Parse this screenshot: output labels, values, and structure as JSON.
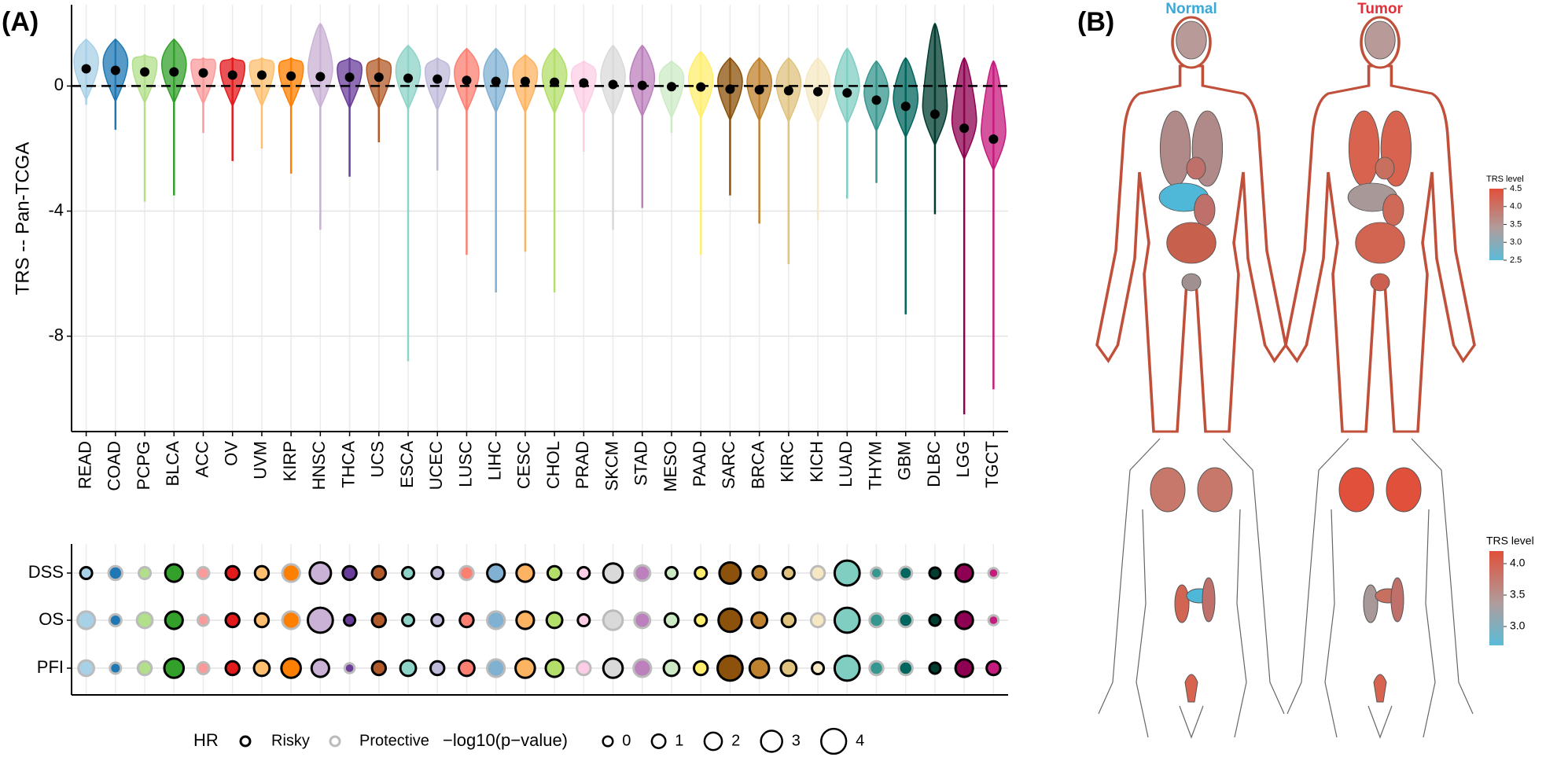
{
  "chart_data": [
    {
      "type": "violin",
      "panel_label": "(A)",
      "ylabel": "TRS -- Pan-TCGA",
      "categories": [
        "READ",
        "COAD",
        "PCPG",
        "BLCA",
        "ACC",
        "OV",
        "UVM",
        "KIRP",
        "HNSC",
        "THCA",
        "UCS",
        "ESCA",
        "UCEC",
        "LUSC",
        "LIHC",
        "CESC",
        "CHOL",
        "PRAD",
        "SKCM",
        "STAD",
        "MESO",
        "PAAD",
        "SARC",
        "BRCA",
        "KIRC",
        "KICH",
        "LUAD",
        "THYM",
        "GBM",
        "DLBC",
        "LGG",
        "TGCT"
      ],
      "colors": [
        "#a8d0e6",
        "#1f78b4",
        "#b2df8a",
        "#33a02c",
        "#fb9a99",
        "#e31a1c",
        "#fdbf6f",
        "#ff7f00",
        "#cab2d6",
        "#6a3d9a",
        "#b15928",
        "#8dd3c7",
        "#bebada",
        "#fb8072",
        "#80b1d3",
        "#fdb462",
        "#b3de69",
        "#fccde5",
        "#d9d9d9",
        "#bc80bd",
        "#ccebc5",
        "#ffed6f",
        "#8c510a",
        "#bf812d",
        "#dfc27d",
        "#f6e8c3",
        "#80cdc1",
        "#35978f",
        "#01665e",
        "#003c30",
        "#8e0152",
        "#c51b7d"
      ],
      "values": [
        0.55,
        0.5,
        0.45,
        0.45,
        0.42,
        0.35,
        0.35,
        0.32,
        0.3,
        0.28,
        0.28,
        0.25,
        0.22,
        0.18,
        0.15,
        0.15,
        0.12,
        0.1,
        0.05,
        0.02,
        -0.02,
        -0.03,
        -0.1,
        -0.12,
        -0.15,
        -0.18,
        -0.22,
        -0.45,
        -0.65,
        -0.9,
        -1.35,
        -1.7
      ],
      "upper": [
        1.5,
        1.5,
        1.0,
        1.5,
        0.9,
        0.9,
        0.9,
        0.9,
        2.0,
        0.9,
        0.9,
        1.3,
        0.9,
        1.2,
        1.2,
        1.0,
        1.2,
        0.8,
        1.3,
        1.3,
        0.8,
        1.1,
        0.9,
        0.9,
        0.9,
        0.9,
        1.2,
        0.8,
        0.9,
        2.0,
        0.9,
        0.8
      ],
      "lower": [
        -0.6,
        -1.4,
        -3.7,
        -3.5,
        -1.5,
        -2.4,
        -2.0,
        -2.8,
        -4.6,
        -2.9,
        -1.8,
        -8.8,
        -2.7,
        -5.4,
        -6.6,
        -5.3,
        -6.6,
        -2.1,
        -4.6,
        -3.9,
        -1.5,
        -5.4,
        -3.5,
        -4.4,
        -5.7,
        -4.3,
        -3.6,
        -3.1,
        -7.3,
        -4.1,
        -10.5,
        -9.7
      ],
      "ylim": [
        -11.05,
        2.6
      ],
      "yticks": [
        -8,
        -4,
        0
      ],
      "hline": 0,
      "grid": true
    },
    {
      "type": "bubble",
      "series": [
        {
          "name": "DSS",
          "values": [
            0.5,
            1,
            0.5,
            2,
            0.5,
            1,
            1,
            2,
            3,
            1,
            1,
            0.5,
            0.5,
            1,
            2,
            2,
            1,
            0.5,
            2.5,
            1.5,
            0.5,
            0.5,
            3,
            1,
            0.5,
            1,
            4,
            0.3,
            0.7,
            0.3,
            2,
            0
          ],
          "hr": [
            0,
            1,
            1,
            0,
            1,
            0,
            0,
            1,
            0,
            0,
            0,
            0,
            0,
            1,
            0,
            0,
            0,
            0,
            0,
            1,
            0,
            0,
            0,
            0,
            0,
            1,
            0,
            1,
            1,
            0,
            0,
            1
          ]
        },
        {
          "name": "OS",
          "values": [
            2,
            0.5,
            1.5,
            2,
            0.3,
            1,
            1,
            2,
            4,
            0.3,
            1,
            0.5,
            0.5,
            1,
            2,
            2,
            1.5,
            0.5,
            2.5,
            1.5,
            1,
            0.5,
            3.5,
            1.5,
            1,
            1,
            4,
            1,
            1,
            0.3,
            2,
            0
          ],
          "hr": [
            1,
            1,
            1,
            0,
            1,
            0,
            0,
            1,
            0,
            0,
            0,
            0,
            0,
            0,
            1,
            0,
            0,
            0,
            1,
            1,
            0,
            0,
            0,
            0,
            0,
            1,
            0,
            1,
            1,
            0,
            0,
            1
          ]
        },
        {
          "name": "PFI",
          "values": [
            1.5,
            0.3,
            1,
            2.5,
            0.5,
            1,
            1.5,
            2.5,
            2,
            0,
            1,
            1.5,
            1,
            1.5,
            2,
            2.5,
            2,
            1,
            2.5,
            2,
            1.5,
            1,
            4,
            2.5,
            1.5,
            0.5,
            4,
            1,
            1,
            0.3,
            2,
            1
          ],
          "hr": [
            1,
            1,
            1,
            0,
            1,
            0,
            0,
            0,
            0,
            1,
            0,
            0,
            0,
            0,
            1,
            0,
            0,
            1,
            0,
            1,
            0,
            0,
            0,
            0,
            0,
            0,
            0,
            1,
            1,
            0,
            0,
            0
          ]
        }
      ],
      "hr_title": "HR",
      "hr_levels": [
        "Risky",
        "Protective"
      ],
      "hr_colors": [
        "#000000",
        "#bbbbbb"
      ],
      "size_title": "−log10(p−value)",
      "size_ticks": [
        0,
        1,
        2,
        3,
        4
      ]
    }
  ],
  "panel_b": {
    "label": "(B)",
    "normal": "Normal",
    "tumor": "Tumor",
    "legends": [
      {
        "title": "TRS level",
        "lim": [
          2.5,
          4.5
        ],
        "ticks": [
          2.5,
          {
            "value": 3,
            "label": "3.0"
          },
          3.5,
          {
            "value": 4,
            "label": "4.0"
          },
          4.5
        ]
      },
      {
        "title": "TRS level",
        "lim": [
          2.7,
          4.2
        ],
        "ticks": [
          {
            "value": 3,
            "label": "3.0"
          },
          3.5,
          {
            "value": 4,
            "label": "4.0"
          }
        ]
      }
    ]
  }
}
